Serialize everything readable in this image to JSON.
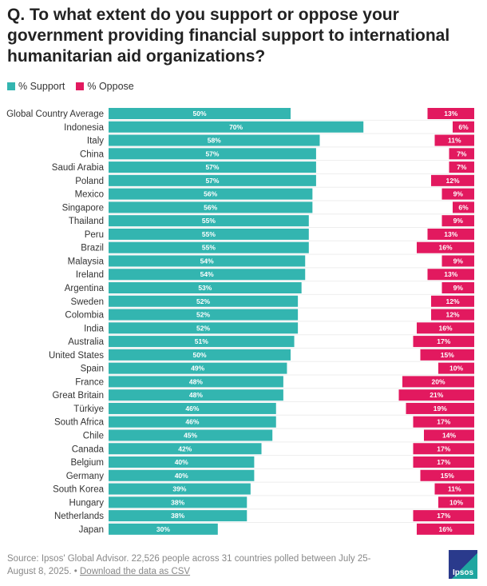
{
  "chart_data": {
    "type": "bar",
    "title": "Q. To what extent do you support or oppose your government providing financial support to international humanitarian aid organizations?",
    "legend_position": "top-left",
    "colors": {
      "support": "#33b5b0",
      "oppose": "#e2195f"
    },
    "categories": [
      "Global Country Average",
      "Indonesia",
      "Italy",
      "China",
      "Saudi Arabia",
      "Poland",
      "Mexico",
      "Singapore",
      "Thailand",
      "Peru",
      "Brazil",
      "Malaysia",
      "Ireland",
      "Argentina",
      "Sweden",
      "Colombia",
      "India",
      "Australia",
      "United States",
      "Spain",
      "France",
      "Great Britain",
      "Türkiye",
      "South Africa",
      "Chile",
      "Canada",
      "Belgium",
      "Germany",
      "South Korea",
      "Hungary",
      "Netherlands",
      "Japan"
    ],
    "series": [
      {
        "name": "% Support",
        "values": [
          50,
          70,
          58,
          57,
          57,
          57,
          56,
          56,
          55,
          55,
          55,
          54,
          54,
          53,
          52,
          52,
          52,
          51,
          50,
          49,
          48,
          48,
          46,
          46,
          45,
          42,
          40,
          40,
          39,
          38,
          38,
          30
        ]
      },
      {
        "name": "% Oppose",
        "values": [
          13,
          6,
          11,
          7,
          7,
          12,
          9,
          6,
          9,
          13,
          16,
          9,
          13,
          9,
          12,
          12,
          16,
          17,
          15,
          10,
          20,
          21,
          19,
          17,
          14,
          17,
          17,
          15,
          11,
          10,
          17,
          16
        ]
      }
    ]
  },
  "source": {
    "text": "Source: Ipsos' Global Advisor. 22,526 people across 31 countries polled between July 25-August 8, 2025. •",
    "link": "Download the data as CSV"
  },
  "logo": "Ipsos"
}
